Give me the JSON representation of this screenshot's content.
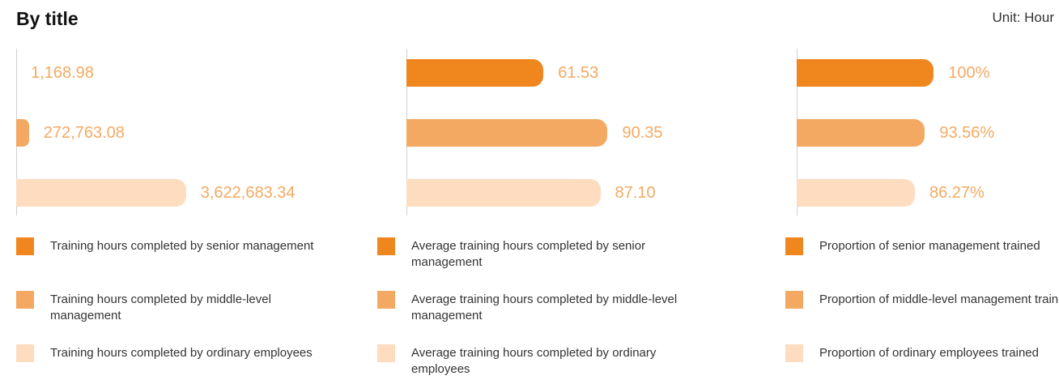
{
  "title": "By title",
  "unit": "Unit: Hour",
  "chart_data": [
    {
      "type": "bar",
      "orientation": "horizontal",
      "categories": [
        "Training hours completed by senior management",
        "Training hours completed by middle-level management",
        "Training hours completed by ordinary employees"
      ],
      "values": [
        1168.98,
        272763.08,
        3622683.34
      ],
      "value_labels": [
        "1,168.98",
        "272,763.08",
        "3,622,683.34"
      ],
      "colors": [
        "#f0861e",
        "#f4a962",
        "#fddcbf"
      ],
      "xlim": [
        0,
        7600000
      ]
    },
    {
      "type": "bar",
      "orientation": "horizontal",
      "categories": [
        "Average training hours completed by senior management",
        "Average training hours completed by middle-level management",
        "Average training hours completed by ordinary employees"
      ],
      "values": [
        61.53,
        90.35,
        87.1
      ],
      "value_labels": [
        "61.53",
        "90.35",
        "87.10"
      ],
      "colors": [
        "#f0861e",
        "#f4a962",
        "#fddcbf"
      ],
      "xlim": [
        0,
        160
      ]
    },
    {
      "type": "bar",
      "orientation": "horizontal",
      "categories": [
        "Proportion of senior management trained",
        "Proportion of middle-level management trained",
        "Proportion of ordinary employees trained"
      ],
      "values": [
        100,
        93.56,
        86.27
      ],
      "value_labels": [
        "100%",
        "93.56%",
        "86.27%"
      ],
      "colors": [
        "#f0861e",
        "#f4a962",
        "#fddcbf"
      ],
      "xlim": [
        0,
        260
      ]
    }
  ]
}
